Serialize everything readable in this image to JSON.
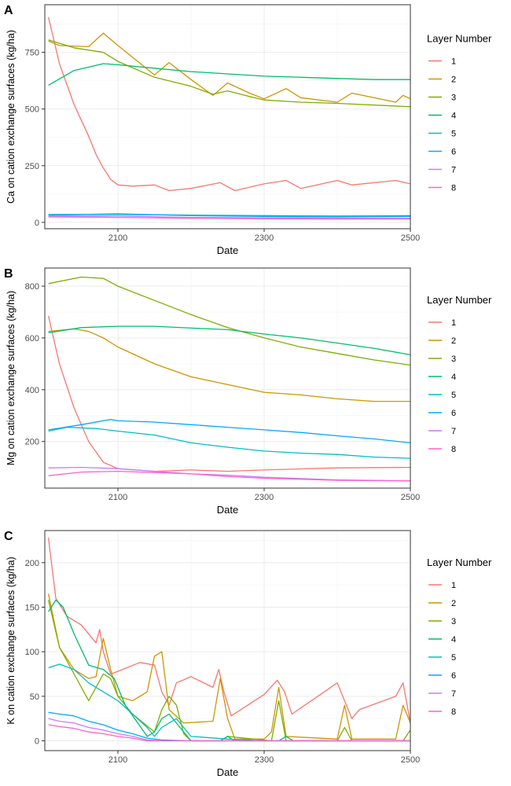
{
  "legend_title": "Layer Number",
  "layer_colors": [
    "#F8766D",
    "#CD9600",
    "#7CAE00",
    "#00BE67",
    "#00BFC4",
    "#00A9FF",
    "#C77CFF",
    "#FF61CC"
  ],
  "chart_data": [
    {
      "panel_label": "A",
      "type": "line",
      "xlabel": "Date",
      "ylabel": "Ca on cation exchange surfaces (kg/ha)",
      "xlim": [
        2000,
        2500
      ],
      "ylim": [
        -28,
        960
      ],
      "x_ticks": [
        2100,
        2300,
        2500
      ],
      "x_tick_labels": [
        "2100",
        "2300",
        "2500"
      ],
      "y_ticks": [
        0,
        250,
        500,
        750
      ],
      "y_tick_labels": [
        "0",
        "250",
        "500",
        "750"
      ],
      "grid": true,
      "legend_position": "right",
      "series": [
        {
          "name": "1",
          "x": [
            2005,
            2020,
            2040,
            2060,
            2070,
            2080,
            2090,
            2100,
            2120,
            2150,
            2170,
            2200,
            2240,
            2260,
            2300,
            2330,
            2350,
            2400,
            2420,
            2480,
            2500
          ],
          "y": [
            905,
            700,
            520,
            380,
            300,
            240,
            190,
            165,
            160,
            165,
            140,
            150,
            175,
            140,
            170,
            185,
            150,
            185,
            165,
            185,
            170
          ]
        },
        {
          "name": "2",
          "x": [
            2005,
            2020,
            2060,
            2080,
            2100,
            2150,
            2170,
            2200,
            2230,
            2250,
            2280,
            2300,
            2330,
            2350,
            2400,
            2420,
            2480,
            2490,
            2500
          ],
          "y": [
            800,
            780,
            775,
            835,
            780,
            650,
            705,
            630,
            560,
            615,
            570,
            545,
            590,
            550,
            530,
            570,
            530,
            560,
            545
          ]
        },
        {
          "name": "3",
          "x": [
            2005,
            2040,
            2080,
            2100,
            2150,
            2200,
            2230,
            2250,
            2280,
            2300,
            2350,
            2400,
            2500
          ],
          "y": [
            805,
            770,
            750,
            710,
            640,
            600,
            565,
            580,
            555,
            540,
            530,
            525,
            510
          ]
        },
        {
          "name": "4",
          "x": [
            2005,
            2040,
            2080,
            2100,
            2150,
            2200,
            2250,
            2300,
            2350,
            2400,
            2450,
            2500
          ],
          "y": [
            605,
            670,
            700,
            695,
            680,
            665,
            655,
            645,
            640,
            635,
            630,
            630
          ]
        },
        {
          "name": "5",
          "x": [
            2005,
            2100,
            2200,
            2300,
            2400,
            2500
          ],
          "y": [
            35,
            35,
            32,
            30,
            28,
            30
          ]
        },
        {
          "name": "6",
          "x": [
            2005,
            2100,
            2200,
            2300,
            2400,
            2500
          ],
          "y": [
            32,
            38,
            30,
            26,
            24,
            26
          ]
        },
        {
          "name": "7",
          "x": [
            2005,
            2100,
            2200,
            2300,
            2400,
            2500
          ],
          "y": [
            28,
            28,
            22,
            20,
            18,
            18
          ]
        },
        {
          "name": "8",
          "x": [
            2005,
            2100,
            2200,
            2300,
            2400,
            2500
          ],
          "y": [
            24,
            22,
            18,
            16,
            15,
            15
          ]
        }
      ]
    },
    {
      "panel_label": "B",
      "type": "line",
      "xlabel": "Date",
      "ylabel": "Mg on cation exchange surfaces (kg/ha)",
      "xlim": [
        2000,
        2500
      ],
      "ylim": [
        20,
        870
      ],
      "x_ticks": [
        2100,
        2300,
        2500
      ],
      "x_tick_labels": [
        "2100",
        "2300",
        "2500"
      ],
      "y_ticks": [
        200,
        400,
        600,
        800
      ],
      "y_tick_labels": [
        "200",
        "400",
        "600",
        "800"
      ],
      "grid": true,
      "legend_position": "right",
      "series": [
        {
          "name": "1",
          "x": [
            2005,
            2020,
            2040,
            2060,
            2080,
            2100,
            2150,
            2200,
            2250,
            2300,
            2400,
            2500
          ],
          "y": [
            685,
            500,
            330,
            200,
            120,
            95,
            85,
            90,
            85,
            90,
            98,
            100
          ]
        },
        {
          "name": "2",
          "x": [
            2005,
            2040,
            2060,
            2080,
            2100,
            2150,
            2200,
            2250,
            2300,
            2350,
            2400,
            2450,
            2500
          ],
          "y": [
            625,
            635,
            625,
            600,
            565,
            500,
            450,
            420,
            390,
            380,
            365,
            355,
            355
          ]
        },
        {
          "name": "3",
          "x": [
            2005,
            2050,
            2080,
            2100,
            2150,
            2200,
            2250,
            2300,
            2350,
            2400,
            2450,
            2500
          ],
          "y": [
            810,
            835,
            830,
            800,
            745,
            690,
            640,
            600,
            565,
            540,
            515,
            495
          ]
        },
        {
          "name": "4",
          "x": [
            2005,
            2050,
            2100,
            2150,
            2200,
            2250,
            2300,
            2350,
            2400,
            2450,
            2500
          ],
          "y": [
            620,
            640,
            645,
            645,
            638,
            632,
            615,
            600,
            580,
            560,
            535
          ]
        },
        {
          "name": "5",
          "x": [
            2005,
            2030,
            2070,
            2100,
            2150,
            2200,
            2250,
            2300,
            2350,
            2400,
            2450,
            2500
          ],
          "y": [
            240,
            255,
            250,
            240,
            225,
            195,
            178,
            163,
            155,
            150,
            140,
            135
          ]
        },
        {
          "name": "6",
          "x": [
            2005,
            2050,
            2090,
            2100,
            2150,
            2200,
            2250,
            2300,
            2350,
            2400,
            2450,
            2500
          ],
          "y": [
            245,
            265,
            285,
            280,
            275,
            265,
            255,
            245,
            235,
            222,
            210,
            195
          ]
        },
        {
          "name": "7",
          "x": [
            2005,
            2050,
            2100,
            2150,
            2200,
            2250,
            2300,
            2400,
            2500
          ],
          "y": [
            98,
            100,
            95,
            85,
            75,
            70,
            62,
            52,
            48
          ]
        },
        {
          "name": "8",
          "x": [
            2005,
            2050,
            2100,
            2150,
            2200,
            2250,
            2300,
            2400,
            2500
          ],
          "y": [
            68,
            82,
            85,
            80,
            75,
            65,
            58,
            50,
            48
          ]
        }
      ]
    },
    {
      "panel_label": "C",
      "type": "line",
      "xlabel": "Date",
      "ylabel": "K on cation exchange surfaces (kg/ha)",
      "xlim": [
        2000,
        2500
      ],
      "ylim": [
        -11,
        236
      ],
      "x_ticks": [
        2100,
        2300,
        2500
      ],
      "x_tick_labels": [
        "2100",
        "2300",
        "2500"
      ],
      "y_ticks": [
        0,
        50,
        100,
        150,
        200
      ],
      "y_tick_labels": [
        "0",
        "50",
        "100",
        "150",
        "200"
      ],
      "grid": true,
      "legend_position": "right",
      "series": [
        {
          "name": "1",
          "x": [
            2005,
            2015,
            2030,
            2050,
            2070,
            2075,
            2080,
            2090,
            2100,
            2130,
            2150,
            2160,
            2170,
            2180,
            2200,
            2230,
            2238,
            2245,
            2255,
            2300,
            2318,
            2328,
            2338,
            2400,
            2410,
            2420,
            2430,
            2480,
            2490,
            2500
          ],
          "y": [
            228,
            160,
            140,
            130,
            110,
            125,
            100,
            75,
            78,
            88,
            85,
            55,
            40,
            65,
            72,
            60,
            80,
            55,
            28,
            52,
            68,
            55,
            30,
            65,
            45,
            25,
            35,
            50,
            65,
            20
          ]
        },
        {
          "name": "2",
          "x": [
            2005,
            2020,
            2040,
            2060,
            2070,
            2080,
            2090,
            2100,
            2120,
            2140,
            2150,
            2160,
            2170,
            2190,
            2230,
            2240,
            2250,
            2260,
            2300,
            2310,
            2320,
            2330,
            2400,
            2410,
            2420,
            2480,
            2490,
            2500
          ],
          "y": [
            165,
            105,
            80,
            70,
            72,
            115,
            80,
            50,
            45,
            55,
            95,
            100,
            35,
            20,
            22,
            70,
            25,
            2,
            2,
            10,
            60,
            5,
            2,
            40,
            2,
            2,
            40,
            20
          ]
        },
        {
          "name": "3",
          "x": [
            2005,
            2020,
            2040,
            2060,
            2070,
            2080,
            2090,
            2100,
            2120,
            2150,
            2160,
            2170,
            2180,
            2190,
            2200,
            2240,
            2250,
            2310,
            2320,
            2330,
            2400,
            2410,
            2420,
            2490,
            2500
          ],
          "y": [
            158,
            105,
            75,
            45,
            60,
            75,
            70,
            50,
            30,
            10,
            35,
            50,
            40,
            8,
            0,
            0,
            5,
            0,
            45,
            0,
            0,
            15,
            0,
            0,
            12
          ]
        },
        {
          "name": "4",
          "x": [
            2005,
            2015,
            2025,
            2040,
            2060,
            2080,
            2095,
            2110,
            2140,
            2150,
            2160,
            2170,
            2180,
            2200,
            2240,
            2250,
            2260,
            2320,
            2330,
            2340,
            2500
          ],
          "y": [
            145,
            158,
            150,
            120,
            85,
            80,
            70,
            40,
            5,
            10,
            25,
            30,
            20,
            0,
            0,
            5,
            0,
            0,
            5,
            0,
            0
          ]
        },
        {
          "name": "5",
          "x": [
            2005,
            2020,
            2040,
            2060,
            2080,
            2100,
            2120,
            2140,
            2150,
            2160,
            2180,
            2200,
            2250,
            2300,
            2500
          ],
          "y": [
            82,
            86,
            80,
            65,
            55,
            45,
            30,
            15,
            5,
            15,
            25,
            5,
            2,
            0,
            0
          ]
        },
        {
          "name": "6",
          "x": [
            2005,
            2020,
            2040,
            2060,
            2080,
            2100,
            2120,
            2140,
            2160,
            2200,
            2500
          ],
          "y": [
            32,
            30,
            28,
            22,
            18,
            12,
            8,
            3,
            1,
            0,
            0
          ]
        },
        {
          "name": "7",
          "x": [
            2005,
            2020,
            2040,
            2060,
            2080,
            2100,
            2120,
            2140,
            2160,
            2500
          ],
          "y": [
            25,
            22,
            20,
            15,
            12,
            8,
            5,
            1,
            0,
            0
          ]
        },
        {
          "name": "8",
          "x": [
            2005,
            2020,
            2040,
            2060,
            2080,
            2100,
            2120,
            2140,
            2160,
            2500
          ],
          "y": [
            18,
            16,
            14,
            10,
            8,
            5,
            3,
            0,
            0,
            0
          ]
        }
      ]
    }
  ]
}
